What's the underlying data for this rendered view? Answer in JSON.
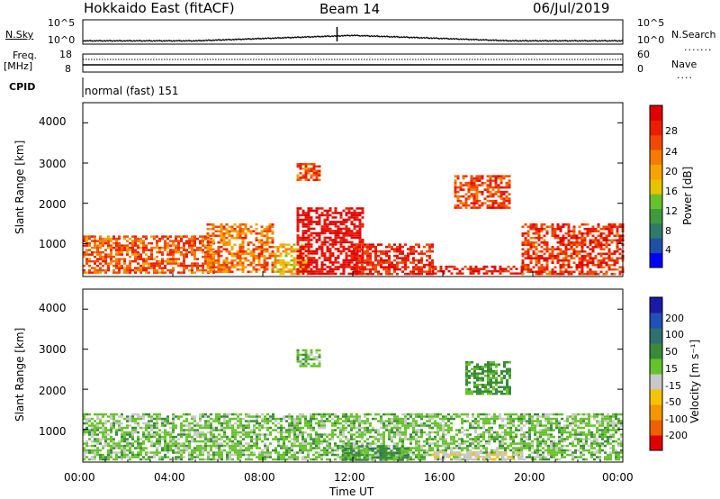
{
  "header": {
    "station": "Hokkaido East (fitACF)",
    "beam": "Beam 14",
    "date": "06/Jul/2019"
  },
  "strip_labels": {
    "nsky": "N.Sky",
    "nsearch": "N.Search",
    "freq": "Freq.",
    "freq_unit": "[MHz]",
    "nave": "Nave",
    "cpid": "CPID",
    "cpid_value": "normal (fast) 151"
  },
  "noise_ticks": {
    "left": [
      "10^5",
      "10^0"
    ],
    "right": [
      "10^5",
      "10^0"
    ]
  },
  "freq_ticks": {
    "left": [
      "18",
      "8"
    ],
    "right": [
      "60",
      "0"
    ]
  },
  "time_axis": {
    "ticks": [
      "00:00",
      "04:00",
      "08:00",
      "12:00",
      "16:00",
      "20:00",
      "00:00"
    ],
    "label": "Time UT"
  },
  "power_panel": {
    "ylabel": "Slant Range [km]",
    "yticks": [
      "4000",
      "3000",
      "2000",
      "1000"
    ],
    "colorbar_label": "Power [dB]",
    "colorbar_ticks": [
      "28",
      "24",
      "20",
      "16",
      "12",
      "8",
      "4"
    ],
    "colors": [
      "#0000ff",
      "#1f4fa8",
      "#2f7a6a",
      "#3f9a3f",
      "#66c22a",
      "#e8c300",
      "#f7a300",
      "#f57c00",
      "#f04a00",
      "#ee1c00",
      "#e00000"
    ]
  },
  "velocity_panel": {
    "ylabel": "Slant Range [km]",
    "yticks": [
      "4000",
      "3000",
      "2000",
      "1000"
    ],
    "colorbar_label": "Velocity [m s⁻¹]",
    "colorbar_ticks": [
      "200",
      "100",
      "50",
      "15",
      "-15",
      "-50",
      "-100",
      "-200"
    ],
    "colors": [
      "#1a1aa6",
      "#2050b8",
      "#2f6f6f",
      "#3a8a3a",
      "#66c22a",
      "#c8c8c8",
      "#f5c400",
      "#f59500",
      "#f06000",
      "#e00000"
    ]
  },
  "chart_data": {
    "type": "heatmap",
    "x_range_hours": [
      0,
      24
    ],
    "y_range_km": [
      180,
      4500
    ],
    "power_regions": [
      {
        "t0": 0.0,
        "t1": 5.8,
        "r0": 250,
        "r1": 1200,
        "power": 24
      },
      {
        "t0": 5.5,
        "t1": 8.5,
        "r0": 300,
        "r1": 1500,
        "power": 22
      },
      {
        "t0": 8.5,
        "t1": 10.0,
        "r0": 250,
        "r1": 1000,
        "power": 18
      },
      {
        "t0": 9.5,
        "t1": 12.5,
        "r0": 250,
        "r1": 1900,
        "power": 30
      },
      {
        "t0": 12.0,
        "t1": 15.5,
        "r0": 250,
        "r1": 1000,
        "power": 27
      },
      {
        "t0": 15.5,
        "t1": 19.5,
        "r0": 250,
        "r1": 450,
        "power": 28
      },
      {
        "t0": 19.5,
        "t1": 24.0,
        "r0": 250,
        "r1": 1500,
        "power": 26
      },
      {
        "t0": 9.5,
        "t1": 10.5,
        "r0": 2600,
        "r1": 3000,
        "power": 24
      },
      {
        "t0": 16.5,
        "t1": 19.0,
        "r0": 1900,
        "r1": 2700,
        "power": 25
      }
    ],
    "velocity_regions": [
      {
        "t0": 0.0,
        "t1": 24.0,
        "r0": 250,
        "r1": 1400,
        "velocity": 0
      },
      {
        "t0": 11.5,
        "t1": 14.5,
        "r0": 250,
        "r1": 600,
        "velocity": 30
      },
      {
        "t0": 15.5,
        "t1": 19.5,
        "r0": 250,
        "r1": 450,
        "velocity": -40
      },
      {
        "t0": 17.0,
        "t1": 19.0,
        "r0": 1900,
        "r1": 2700,
        "velocity": 25
      },
      {
        "t0": 9.5,
        "t1": 10.5,
        "r0": 2600,
        "r1": 3000,
        "velocity": 0
      }
    ]
  }
}
